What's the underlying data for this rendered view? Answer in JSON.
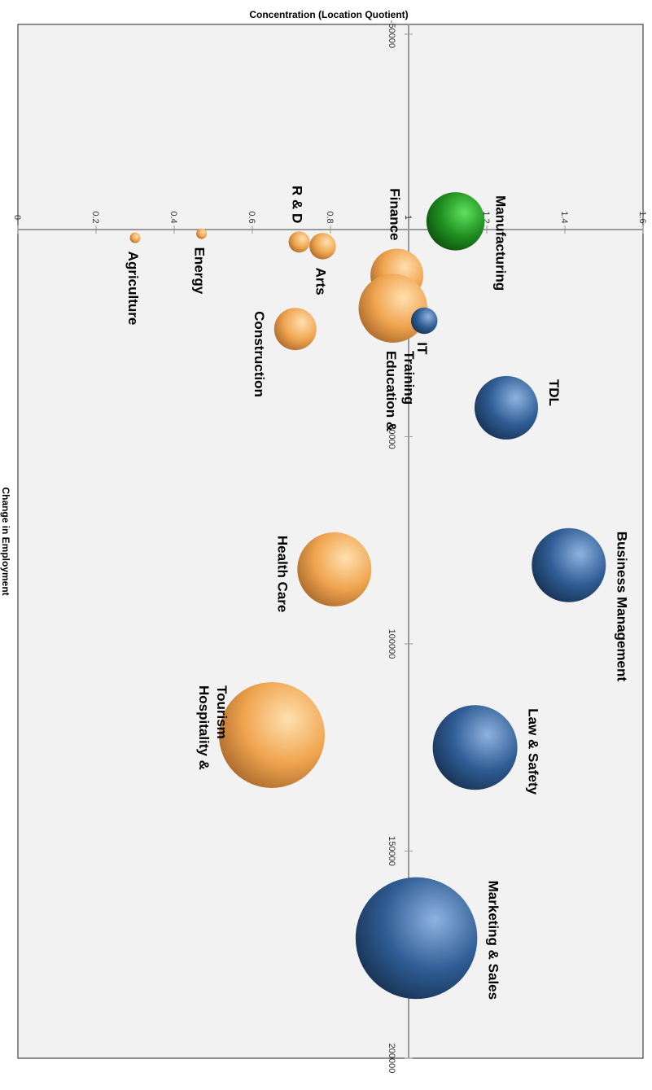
{
  "chart_data": {
    "type": "scatter",
    "title": "",
    "xlabel": "Change in Employment",
    "ylabel": "Concentration (Location Quotient)",
    "xlim": [
      -50000,
      200000
    ],
    "ylim": [
      0,
      1.6
    ],
    "x_ticks": [
      -50000,
      50000,
      100000,
      150000,
      200000
    ],
    "x_tick_labels": [
      "-50000",
      "50000",
      "100000",
      "150000",
      "200000"
    ],
    "y_ticks": [
      0,
      0.2,
      0.4,
      0.6,
      0.8,
      1,
      1.2,
      1.4,
      1.6
    ],
    "y_tick_labels": [
      "0",
      "0.2",
      "0.4",
      "0.6",
      "0.8",
      "1",
      "1.2",
      "1.4",
      "1.6"
    ],
    "rotated": "90deg-clockwise",
    "grid": false,
    "colors": {
      "green": "#1f8f1f",
      "blue": "#2f5d95",
      "orange": "#f0a550"
    },
    "series": [
      {
        "label": "Manufacturing",
        "x": -2000,
        "y": 1.12,
        "size": 0.55,
        "color": "green"
      },
      {
        "label": "Agriculture",
        "x": 2000,
        "y": 0.3,
        "size": 0.1,
        "color": "orange"
      },
      {
        "label": "Energy",
        "x": 1000,
        "y": 0.47,
        "size": 0.1,
        "color": "orange"
      },
      {
        "label": "R & D",
        "x": 3000,
        "y": 0.72,
        "size": 0.2,
        "color": "orange"
      },
      {
        "label": "Arts",
        "x": 4000,
        "y": 0.78,
        "size": 0.25,
        "color": "orange"
      },
      {
        "label": "Finance",
        "x": 11000,
        "y": 0.97,
        "size": 0.5,
        "color": "orange"
      },
      {
        "label": "Education & Training",
        "x": 19000,
        "y": 0.96,
        "size": 0.65,
        "color": "orange"
      },
      {
        "label": "IT",
        "x": 22000,
        "y": 1.04,
        "size": 0.25,
        "color": "blue"
      },
      {
        "label": "Construction",
        "x": 24000,
        "y": 0.71,
        "size": 0.4,
        "color": "orange"
      },
      {
        "label": "TDL",
        "x": 43000,
        "y": 1.25,
        "size": 0.6,
        "color": "blue"
      },
      {
        "label": "Business Management",
        "x": 81000,
        "y": 1.41,
        "size": 0.7,
        "color": "blue"
      },
      {
        "label": "Health Care",
        "x": 82000,
        "y": 0.81,
        "size": 0.7,
        "color": "orange"
      },
      {
        "label": "Law & Safety",
        "x": 125000,
        "y": 1.17,
        "size": 0.8,
        "color": "blue"
      },
      {
        "label": "Hospitality & Tourism",
        "x": 122000,
        "y": 0.65,
        "size": 1.0,
        "color": "orange"
      },
      {
        "label": "Marketing & Sales",
        "x": 171000,
        "y": 1.02,
        "size": 1.15,
        "color": "blue"
      }
    ]
  }
}
